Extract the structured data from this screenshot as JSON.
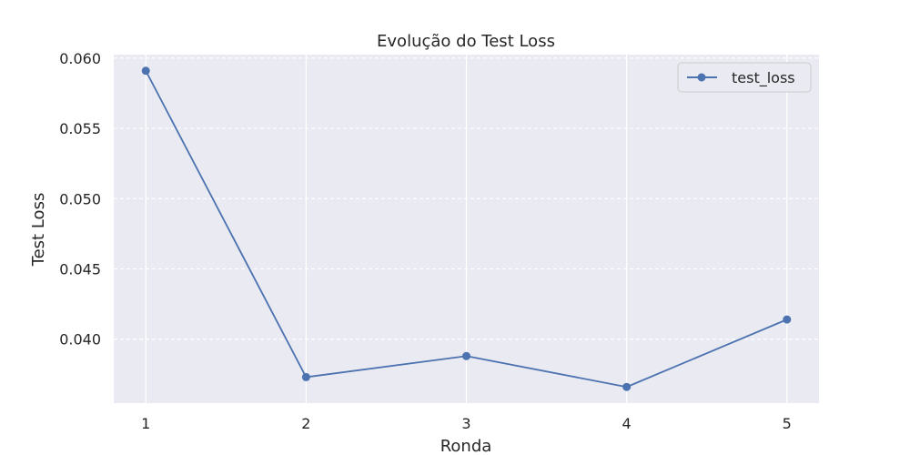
{
  "chart_data": {
    "type": "line",
    "title": "Evolução do Test Loss",
    "xlabel": "Ronda",
    "ylabel": "Test Loss",
    "x": [
      1,
      2,
      3,
      4,
      5
    ],
    "x_tick_labels": [
      "1",
      "2",
      "3",
      "4",
      "5"
    ],
    "y_tick_values": [
      0.04,
      0.045,
      0.05,
      0.055,
      0.06
    ],
    "y_tick_labels": [
      "0.040",
      "0.045",
      "0.050",
      "0.055",
      "0.060"
    ],
    "series": [
      {
        "name": "test_loss",
        "values": [
          0.0591,
          0.0373,
          0.0388,
          0.0366,
          0.0414
        ],
        "color": "#4c72b0",
        "marker": "circle"
      }
    ],
    "xlim": [
      0.8,
      5.2
    ],
    "ylim": [
      0.03545,
      0.06025
    ],
    "grid": true,
    "grid_style": "y dashed, x solid",
    "background_color": "#eaeaf2",
    "legend": "top-right"
  }
}
